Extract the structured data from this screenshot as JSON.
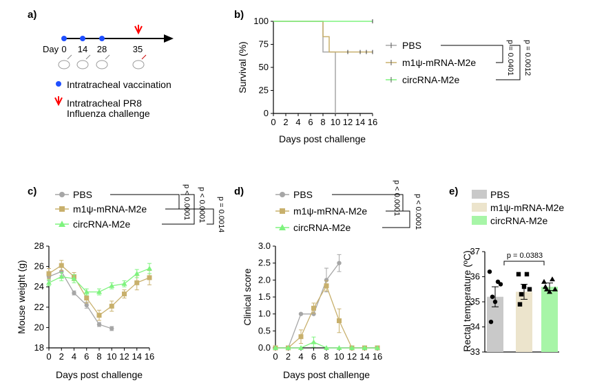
{
  "panel_a": {
    "label": "a)",
    "day_label": "Day",
    "days": [
      "0",
      "14",
      "28",
      "35"
    ],
    "vacc_legend": "Intratracheal vaccination",
    "challenge_legend_1": "Intratracheal PR8",
    "challenge_legend_2": "Influenza challenge",
    "vacc_color": "#1f4fff",
    "challenge_color": "#ff0000"
  },
  "colors": {
    "pbs": "#a6a6a6",
    "m1": "#c8b06c",
    "circ": "#7ef37e",
    "pbs_dark": "#8c8c8c"
  },
  "chart_data": [
    {
      "panel": "b)",
      "type": "line",
      "title": "",
      "xlabel": "Days post challenge",
      "ylabel": "Survival (%)",
      "xlim": [
        0,
        16
      ],
      "ylim": [
        0,
        100
      ],
      "xticks": [
        "0",
        "2",
        "4",
        "6",
        "8",
        "10",
        "12",
        "14",
        "16"
      ],
      "yticks": [
        "0",
        "25",
        "50",
        "75",
        "100"
      ],
      "series": [
        {
          "name": "PBS",
          "x": [
            0,
            8,
            8,
            10,
            10
          ],
          "values": [
            100,
            100,
            66.7,
            66.7,
            0
          ]
        },
        {
          "name": "m1ψ-mRNA-M2e",
          "x": [
            0,
            8,
            8,
            9,
            9,
            16
          ],
          "values": [
            100,
            100,
            83.3,
            83.3,
            66.7,
            66.7
          ]
        },
        {
          "name": "circRNA-M2e",
          "x": [
            0,
            16
          ],
          "values": [
            100,
            100
          ]
        }
      ],
      "censor_marks_m1_x": [
        12,
        14,
        15,
        16
      ],
      "stats": [
        "p = 0.0401",
        "p = 0.0012"
      ]
    },
    {
      "panel": "c)",
      "type": "line",
      "xlabel": "Days post challenge",
      "ylabel": "Mouse weight (g)",
      "xlim": [
        0,
        16
      ],
      "ylim": [
        18,
        28
      ],
      "xticks": [
        "0",
        "2",
        "4",
        "6",
        "8",
        "10",
        "12",
        "14",
        "16"
      ],
      "yticks": [
        "18",
        "20",
        "22",
        "24",
        "26",
        "28"
      ],
      "series": [
        {
          "name": "PBS",
          "x": [
            0,
            2,
            4,
            6,
            8,
            10
          ],
          "values": [
            25.0,
            25.5,
            23.4,
            22.2,
            20.3,
            19.9
          ],
          "err": [
            0.4,
            0.4,
            0.2,
            0.3,
            0.2,
            0.2
          ]
        },
        {
          "name": "m1ψ-mRNA-M2e",
          "x": [
            0,
            2,
            4,
            6,
            8,
            10,
            12,
            14,
            16
          ],
          "values": [
            25.3,
            26.1,
            25.0,
            22.9,
            21.2,
            22.1,
            23.3,
            24.4,
            24.9
          ],
          "err": [
            0.5,
            0.5,
            0.4,
            0.5,
            0.5,
            0.5,
            0.4,
            0.7,
            0.7
          ]
        },
        {
          "name": "circRNA-M2e",
          "x": [
            0,
            2,
            4,
            6,
            8,
            10,
            12,
            14,
            16
          ],
          "values": [
            24.4,
            25.0,
            24.8,
            23.5,
            23.5,
            24.1,
            24.3,
            25.3,
            25.8
          ],
          "err": [
            0.3,
            0.4,
            0.4,
            0.3,
            0.3,
            0.3,
            0.3,
            0.4,
            0.5
          ]
        }
      ],
      "stats": [
        "p < 0.0001",
        "p < 0.0001",
        "p = 0.0014"
      ]
    },
    {
      "panel": "d)",
      "type": "line",
      "xlabel": "Days post challenge",
      "ylabel": "Clinical score",
      "xlim": [
        0,
        16
      ],
      "ylim": [
        0,
        3
      ],
      "xticks": [
        "0",
        "2",
        "4",
        "6",
        "8",
        "10",
        "12",
        "14",
        "16"
      ],
      "yticks": [
        "0.0",
        "0.5",
        "1.0",
        "1.5",
        "2.0",
        "2.5",
        "3.0"
      ],
      "series": [
        {
          "name": "PBS",
          "x": [
            0,
            2,
            4,
            6,
            8,
            10
          ],
          "values": [
            0,
            0,
            1.0,
            1.0,
            2.0,
            2.5
          ],
          "err": [
            0,
            0,
            0,
            0,
            0.35,
            0.25
          ]
        },
        {
          "name": "m1ψ-mRNA-M2e",
          "x": [
            0,
            2,
            4,
            6,
            8,
            10,
            12,
            14,
            16
          ],
          "values": [
            0,
            0,
            0.33,
            1.17,
            1.83,
            0.8,
            0,
            0,
            0
          ],
          "err": [
            0,
            0,
            0.2,
            0.15,
            0.15,
            0.35,
            0,
            0,
            0
          ]
        },
        {
          "name": "circRNA-M2e",
          "x": [
            0,
            2,
            4,
            6,
            8,
            10,
            12,
            14,
            16
          ],
          "values": [
            0,
            0,
            0,
            0.17,
            0,
            0,
            0,
            0,
            0
          ],
          "err": [
            0,
            0,
            0,
            0.15,
            0,
            0,
            0,
            0,
            0
          ]
        }
      ],
      "stats": [
        "p < 0.0001",
        "p < 0.0001"
      ]
    },
    {
      "panel": "e)",
      "type": "bar",
      "xlabel": "",
      "ylabel": "Rectal temperature (ºC)",
      "ylim": [
        33,
        37
      ],
      "yticks": [
        "33",
        "34",
        "35",
        "36",
        "37"
      ],
      "categories": [
        "PBS",
        "m1ψ-mRNA-M2e",
        "circRNA-M2e"
      ],
      "values": [
        35.2,
        35.4,
        35.6
      ],
      "err": [
        0.4,
        0.3,
        0.15
      ],
      "points": [
        [
          36.2,
          35.7,
          35.2,
          35.8,
          35.0,
          34.2
        ],
        [
          36.1,
          35.5,
          35.3,
          36.1,
          35.6,
          34.9
        ],
        [
          35.8,
          35.5,
          35.5,
          35.9,
          35.4,
          35.6
        ]
      ],
      "stats": [
        "p = 0.0383"
      ]
    }
  ]
}
